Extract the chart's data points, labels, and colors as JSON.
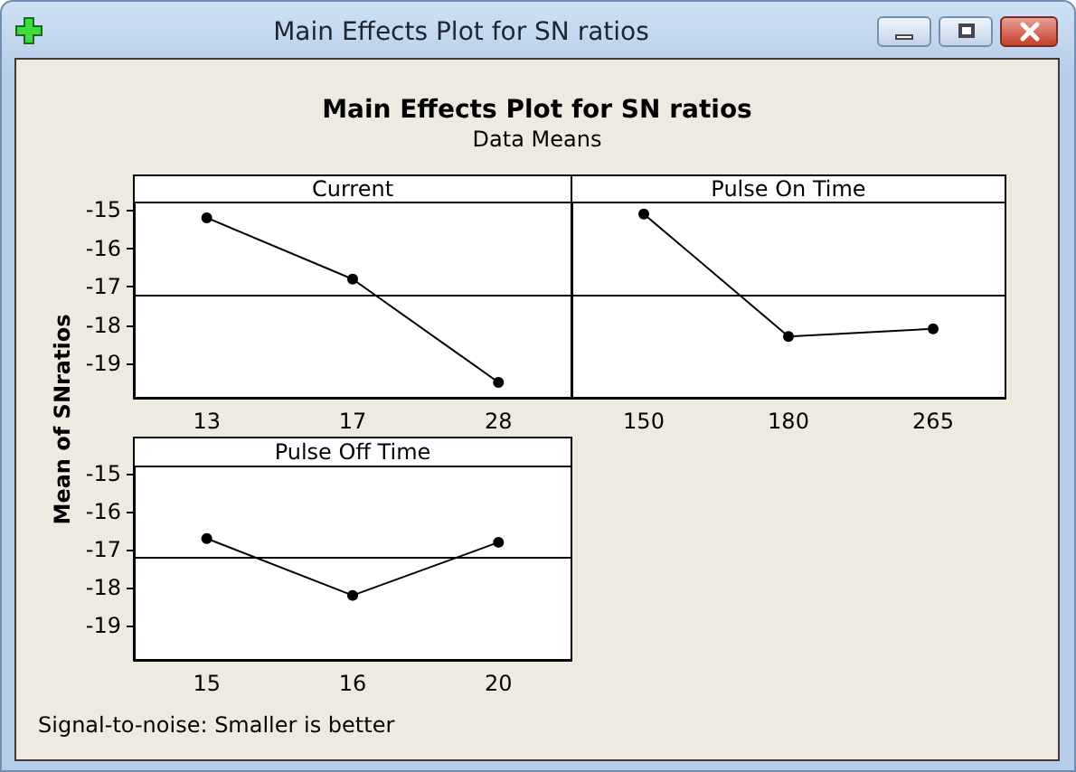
{
  "chart_data": [
    {
      "type": "other",
      "title": "Main Effects Plot for SN ratios",
      "subtitle": "Data Means",
      "ylabel": "Mean of SNratios",
      "annotations": [
        "Signal-to-noise: Smaller is better"
      ]
    },
    {
      "type": "line",
      "title": "Current",
      "categories": [
        "13",
        "17",
        "28"
      ],
      "values": [
        -15.2,
        -16.8,
        -19.5
      ],
      "color": "#000000",
      "marker": "circle",
      "ylim": [
        -19.9,
        -14.8
      ],
      "yticks": [
        -19,
        -18,
        -17,
        -16,
        -15
      ],
      "ref_lines": [
        {
          "axis": "y",
          "value": -17.2
        }
      ]
    },
    {
      "type": "line",
      "title": "Pulse On Time",
      "categories": [
        "150",
        "180",
        "265"
      ],
      "values": [
        -15.1,
        -18.3,
        -18.1
      ],
      "color": "#000000",
      "marker": "circle",
      "ylim": [
        -19.9,
        -14.8
      ],
      "yticks": [
        -19,
        -18,
        -17,
        -16,
        -15
      ],
      "ref_lines": [
        {
          "axis": "y",
          "value": -17.2
        }
      ],
      "tick_labels": "x"
    },
    {
      "type": "line",
      "title": "Pulse Off Time",
      "categories": [
        "15",
        "16",
        "20"
      ],
      "values": [
        -16.7,
        -18.2,
        -16.8
      ],
      "color": "#000000",
      "marker": "circle",
      "ylim": [
        -19.9,
        -14.8
      ],
      "yticks": [
        -19,
        -18,
        -17,
        -16,
        -15
      ],
      "ref_lines": [
        {
          "axis": "y",
          "value": -17.2
        }
      ]
    }
  ]
}
